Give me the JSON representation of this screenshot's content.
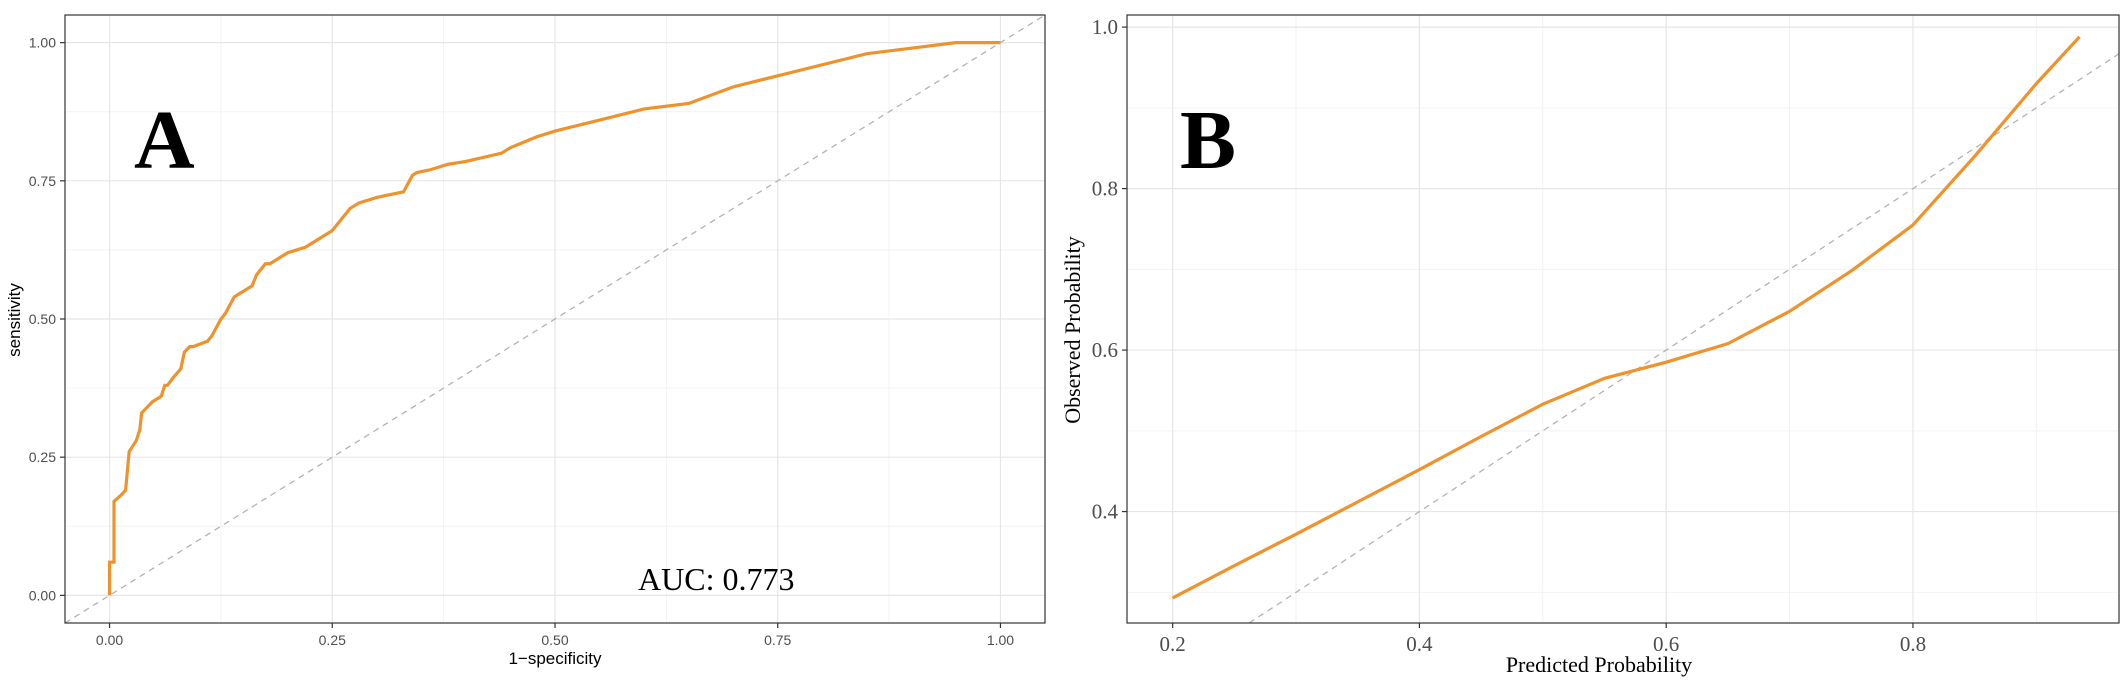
{
  "chart_data": [
    {
      "type": "line",
      "panel_label": "A",
      "xlabel": "1−specificity",
      "ylabel": "sensitivity",
      "xlim": [
        -0.05,
        1.05
      ],
      "ylim": [
        -0.05,
        1.05
      ],
      "x_ticks": [
        0.0,
        0.25,
        0.5,
        0.75,
        1.0
      ],
      "x_tick_labels": [
        "0.00",
        "0.25",
        "0.50",
        "0.75",
        "1.00"
      ],
      "y_ticks": [
        0.0,
        0.25,
        0.5,
        0.75,
        1.0
      ],
      "y_tick_labels": [
        "0.00",
        "0.25",
        "0.50",
        "0.75",
        "1.00"
      ],
      "grid": true,
      "annotation": "AUC: 0.773",
      "series": [
        {
          "color": "#F0922B",
          "x": [
            0,
            0,
            0.005,
            0.005,
            0.012,
            0.018,
            0.022,
            0.022,
            0.03,
            0.034,
            0.036,
            0.042,
            0.048,
            0.058,
            0.062,
            0.065,
            0.072,
            0.08,
            0.084,
            0.09,
            0.094,
            0.11,
            0.115,
            0.125,
            0.13,
            0.14,
            0.15,
            0.16,
            0.165,
            0.17,
            0.175,
            0.18,
            0.2,
            0.22,
            0.23,
            0.24,
            0.25,
            0.26,
            0.27,
            0.28,
            0.3,
            0.33,
            0.34,
            0.345,
            0.36,
            0.38,
            0.4,
            0.44,
            0.45,
            0.48,
            0.5,
            0.55,
            0.6,
            0.65,
            0.7,
            0.75,
            0.8,
            0.85,
            0.9,
            0.95,
            1.0
          ],
          "y": [
            0,
            0.06,
            0.06,
            0.17,
            0.18,
            0.19,
            0.26,
            0.26,
            0.28,
            0.3,
            0.33,
            0.34,
            0.35,
            0.36,
            0.38,
            0.38,
            0.395,
            0.41,
            0.44,
            0.45,
            0.45,
            0.46,
            0.47,
            0.5,
            0.51,
            0.54,
            0.55,
            0.56,
            0.58,
            0.59,
            0.6,
            0.6,
            0.62,
            0.63,
            0.64,
            0.65,
            0.66,
            0.68,
            0.7,
            0.71,
            0.72,
            0.73,
            0.76,
            0.765,
            0.77,
            0.78,
            0.785,
            0.8,
            0.81,
            0.83,
            0.84,
            0.86,
            0.88,
            0.89,
            0.92,
            0.94,
            0.96,
            0.98,
            0.99,
            1.0,
            1.0
          ]
        },
        {
          "color": "#b3b3b3",
          "dashed": true,
          "x": [
            -0.05,
            1.05
          ],
          "y": [
            -0.05,
            1.05
          ]
        }
      ]
    },
    {
      "type": "line",
      "panel_label": "B",
      "xlabel": "Predicted Probability",
      "ylabel": "Observed Probability",
      "xlim": [
        0.163,
        0.967
      ],
      "ylim": [
        0.262,
        1.015
      ],
      "x_ticks": [
        0.2,
        0.4,
        0.6,
        0.8
      ],
      "x_tick_labels": [
        "0.2",
        "0.4",
        "0.6",
        "0.8"
      ],
      "y_ticks": [
        0.4,
        0.6,
        0.8,
        1.0
      ],
      "y_tick_labels": [
        "0.4",
        "0.6",
        "0.8",
        "1.0"
      ],
      "grid": true,
      "series": [
        {
          "color": "#F0922B",
          "x": [
            0.2,
            0.25,
            0.3,
            0.35,
            0.4,
            0.45,
            0.5,
            0.55,
            0.6,
            0.65,
            0.7,
            0.75,
            0.8,
            0.85,
            0.9,
            0.935
          ],
          "y": [
            0.293,
            0.333,
            0.372,
            0.412,
            0.452,
            0.493,
            0.533,
            0.565,
            0.585,
            0.608,
            0.648,
            0.698,
            0.755,
            0.84,
            0.93,
            0.988
          ]
        },
        {
          "color": "#b3b3b3",
          "dashed": true,
          "x": [
            0.262,
            0.967
          ],
          "y": [
            0.262,
            0.967
          ]
        }
      ]
    }
  ]
}
